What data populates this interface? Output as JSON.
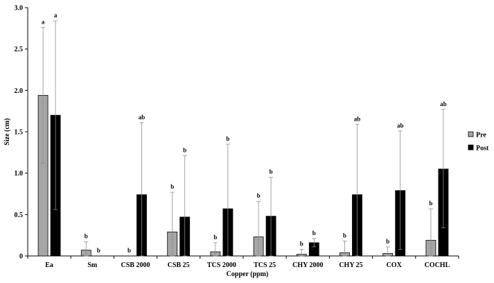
{
  "chart_data": {
    "type": "bar",
    "xlabel": "Copper (ppm)",
    "ylabel": "Size (cm)",
    "ylim": [
      0,
      3.0
    ],
    "yticks": [
      "0",
      "0.5",
      "1.0",
      "1.5",
      "2.0",
      "2.5",
      "3.0"
    ],
    "ytick_values": [
      0,
      0.5,
      1.0,
      1.5,
      2.0,
      2.5,
      3.0
    ],
    "grid": false,
    "legend_position": "right",
    "categories": [
      "Ea",
      "Sm",
      "CSB 2000",
      "CSB 25",
      "TCS 2000",
      "TCS 25",
      "CHY 2000",
      "CHY 25",
      "COX",
      "COCHL"
    ],
    "series": [
      {
        "name": "Pre",
        "color": "#a6a6a6",
        "values": [
          1.94,
          0.07,
          0.0,
          0.29,
          0.05,
          0.23,
          0.02,
          0.04,
          0.03,
          0.19
        ],
        "error_upper": [
          0.82,
          0.1,
          0.0,
          0.48,
          0.11,
          0.43,
          0.06,
          0.14,
          0.08,
          0.38
        ],
        "error_lower": [
          0.82,
          0.07,
          0.0,
          0.29,
          0.05,
          0.23,
          0.02,
          0.04,
          0.03,
          0.19
        ],
        "labels": [
          "a",
          "b",
          "b",
          "b",
          "b",
          "b",
          "b",
          "b",
          "b",
          "b"
        ]
      },
      {
        "name": "Post",
        "color": "#000000",
        "values": [
          1.7,
          0.0,
          0.74,
          0.47,
          0.57,
          0.48,
          0.16,
          0.74,
          0.79,
          1.05
        ],
        "error_upper": [
          1.14,
          0.0,
          0.87,
          0.74,
          0.78,
          0.47,
          0.05,
          0.85,
          0.72,
          0.72
        ],
        "error_lower": [
          1.14,
          0.0,
          0.74,
          0.47,
          0.57,
          0.48,
          0.05,
          0.74,
          0.71,
          0.71
        ],
        "labels": [
          "a",
          "b",
          "ab",
          "b",
          "b",
          "b",
          "b",
          "ab",
          "ab",
          "ab"
        ]
      }
    ]
  }
}
